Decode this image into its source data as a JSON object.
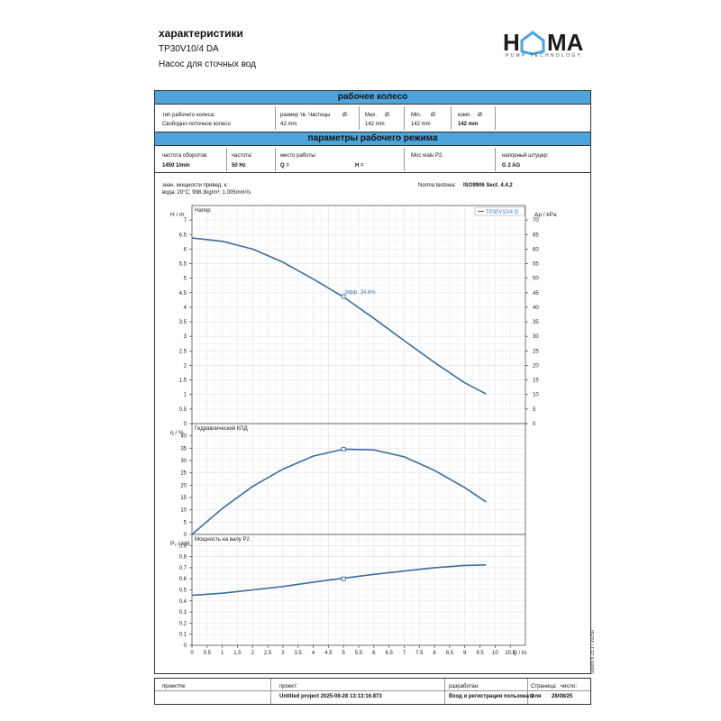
{
  "header": {
    "title": "характеристики",
    "model": "TP30V10/4 DA",
    "description": "Насос для сточных вод"
  },
  "logo": {
    "name": "HOMA",
    "tagline": "PUMP TECHNOLOGY",
    "accent": "#4ea3db"
  },
  "impeller_section": {
    "title": "рабочее колесо",
    "type_label": "тип рабочего колеса:",
    "type_value": "Свободно-поточное колесо",
    "particle_label": "размер тв. Частицы",
    "particle_sym": "Ø:",
    "particle_value": "42 mm",
    "max_label": "Max.",
    "max_sym": "Ø:",
    "max_value": "142 mm",
    "min_label": "Min.",
    "min_sym": "Ø:",
    "min_value": "142 mm",
    "comp_label": "комп.",
    "comp_sym": "Ø:",
    "comp_value": "142 mm"
  },
  "operating_section": {
    "title": "параметры рабочего режима",
    "speed_label": "частота оборотов:",
    "speed_value": "1450 1/min",
    "freq_label": "частота:",
    "freq_value": "50 Hz",
    "point_label": "место работы:",
    "q_value": "Q =",
    "h_value": "H =",
    "power_label": "Moc walu P2:",
    "outlet_label": "напорный штуцер:",
    "outlet_value": "G 2 AG"
  },
  "notes": {
    "line1": "знач. мощности привед. к:",
    "line2": "вода; 20°C; 998.3kg/m³; 1.005mm²/s",
    "norm_label": "Norma testowa:",
    "norm_value": "ISO9906 Sect. 4.4.2"
  },
  "chart_data": [
    {
      "type": "line",
      "title": "Напор",
      "ylabel": "H / m",
      "y2label": "Δp / kPa",
      "xlabel": "Q / l/s",
      "legend": "TP30V10/4 D",
      "legend_position": "top-right",
      "grid": true,
      "xlim": [
        0,
        11
      ],
      "ylim": [
        0,
        7.5
      ],
      "y2lim": [
        0,
        75
      ],
      "x_ticks": [
        "0",
        "0.5",
        "1",
        "1.5",
        "2",
        "2.5",
        "3",
        "3.5",
        "4",
        "4.5",
        "5",
        "5.5",
        "6",
        "6.5",
        "7",
        "7.5",
        "8",
        "8.5",
        "9",
        "9.5",
        "10",
        "10.5"
      ],
      "y_ticks": [
        "0",
        "0.5",
        "1",
        "1.5",
        "2",
        "2.5",
        "3",
        "3.5",
        "4",
        "4.5",
        "5",
        "5.5",
        "6",
        "6.5",
        "7"
      ],
      "y2_ticks": [
        "0",
        "5",
        "10",
        "15",
        "20",
        "25",
        "30",
        "35",
        "40",
        "45",
        "50",
        "55",
        "60",
        "65",
        "70"
      ],
      "series": [
        {
          "name": "TP30V10/4 D",
          "x": [
            0,
            1,
            2,
            3,
            4,
            5,
            6,
            7,
            8,
            9,
            9.7
          ],
          "y": [
            6.38,
            6.27,
            6.0,
            5.55,
            4.97,
            4.35,
            3.62,
            2.85,
            2.1,
            1.4,
            1.02
          ]
        }
      ],
      "marker": {
        "x": 5.0,
        "y": 4.37,
        "label": "Эфф. 34.6%"
      }
    },
    {
      "type": "line",
      "title": "Гидравлический КПД",
      "ylabel": "η / %",
      "grid": true,
      "xlim": [
        0,
        11
      ],
      "ylim": [
        0,
        45
      ],
      "y_ticks": [
        "0",
        "5",
        "10",
        "15",
        "20",
        "25",
        "30",
        "35",
        "40"
      ],
      "series": [
        {
          "x": [
            0,
            1,
            2,
            3,
            4,
            5,
            6,
            7,
            8,
            9,
            9.7
          ],
          "y": [
            0,
            10.5,
            19.5,
            26.5,
            31.8,
            34.6,
            34.3,
            31.5,
            26.0,
            19.0,
            13.2
          ]
        }
      ],
      "marker": {
        "x": 5.0,
        "y": 34.6
      }
    },
    {
      "type": "line",
      "title": "Мощность на валу P2",
      "ylabel": "P₂ / kW",
      "xlabel": "Q / l/s",
      "grid": true,
      "xlim": [
        0,
        11
      ],
      "ylim": [
        0,
        1.0
      ],
      "y_ticks": [
        "0",
        "0.1",
        "0.2",
        "0.3",
        "0.4",
        "0.5",
        "0.6",
        "0.7",
        "0.8",
        "0.9"
      ],
      "series": [
        {
          "x": [
            0,
            1,
            2,
            3,
            4,
            5,
            6,
            7,
            8,
            9,
            9.7
          ],
          "y": [
            0.45,
            0.47,
            0.5,
            0.53,
            0.57,
            0.605,
            0.64,
            0.67,
            0.7,
            0.72,
            0.725
          ]
        }
      ],
      "marker": {
        "x": 5.0,
        "y": 0.6
      }
    }
  ],
  "footer": {
    "project_num_label": "проект№:",
    "project_label": "проект:",
    "project_value": "Untitled project 2025-08-28 13:13:16.873",
    "author_label": "разработан:",
    "author_value": "Вход и регистрация пользователя",
    "page_label": "Страница:",
    "page_value": "2",
    "date_label": "число:",
    "date_value": "28/08/25"
  },
  "side_note": "Spaix5 6.25.1 / 2025R"
}
